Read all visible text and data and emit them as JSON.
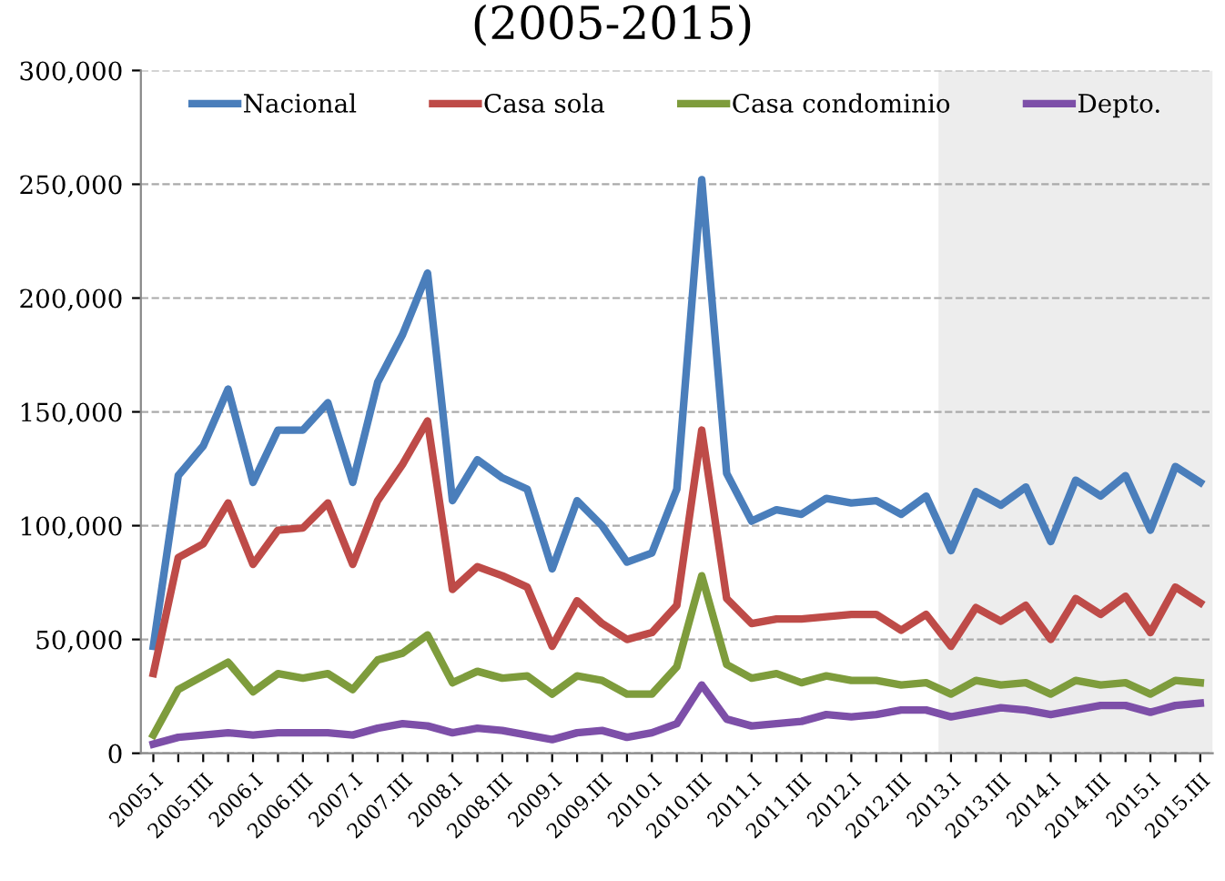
{
  "chart_data": {
    "type": "line",
    "title": "(2005-2015)",
    "categories": [
      "2005.I",
      null,
      "2005.III",
      null,
      "2006.I",
      null,
      "2006.III",
      null,
      "2007.I",
      null,
      "2007.III",
      null,
      "2008.I",
      null,
      "2008.III",
      null,
      "2009.I",
      null,
      "2009.III",
      null,
      "2010.I",
      null,
      "2010.III",
      null,
      "2011.I",
      null,
      "2011.III",
      null,
      "2012.I",
      null,
      "2012.III",
      null,
      "2013.I",
      null,
      "2013.III",
      null,
      "2014.I",
      null,
      "2014.III",
      null,
      "2015.I",
      null,
      "2015.III"
    ],
    "series": [
      {
        "name": "Nacional",
        "color": "#4a7ebb",
        "values": [
          47000,
          122000,
          135000,
          160000,
          119000,
          142000,
          142000,
          154000,
          119000,
          163000,
          184000,
          211000,
          111000,
          129000,
          121000,
          116000,
          81000,
          111000,
          100000,
          84000,
          88000,
          116000,
          252000,
          123000,
          102000,
          107000,
          105000,
          112000,
          110000,
          111000,
          105000,
          113000,
          89000,
          115000,
          109000,
          117000,
          93000,
          120000,
          113000,
          122000,
          98000,
          126000,
          119000
        ]
      },
      {
        "name": "Casa sola",
        "color": "#be4b48",
        "values": [
          35000,
          86000,
          92000,
          110000,
          83000,
          98000,
          99000,
          110000,
          83000,
          111000,
          127000,
          146000,
          72000,
          82000,
          78000,
          73000,
          47000,
          67000,
          57000,
          50000,
          53000,
          65000,
          142000,
          68000,
          57000,
          59000,
          59000,
          60000,
          61000,
          61000,
          54000,
          61000,
          47000,
          64000,
          58000,
          65000,
          50000,
          68000,
          61000,
          69000,
          53000,
          73000,
          66000
        ]
      },
      {
        "name": "Casa condominio",
        "color": "#7e9c3c",
        "values": [
          8000,
          28000,
          34000,
          40000,
          27000,
          35000,
          33000,
          35000,
          28000,
          41000,
          44000,
          52000,
          31000,
          36000,
          33000,
          34000,
          26000,
          34000,
          32000,
          26000,
          26000,
          38000,
          78000,
          39000,
          33000,
          35000,
          31000,
          34000,
          32000,
          32000,
          30000,
          31000,
          26000,
          32000,
          30000,
          31000,
          26000,
          32000,
          30000,
          31000,
          26000,
          32000,
          31000
        ]
      },
      {
        "name": "Depto.",
        "color": "#7d4fa8",
        "values": [
          4000,
          7000,
          8000,
          9000,
          8000,
          9000,
          9000,
          9000,
          8000,
          11000,
          13000,
          12000,
          9000,
          11000,
          10000,
          8000,
          6000,
          9000,
          10000,
          7000,
          9000,
          13000,
          30000,
          15000,
          12000,
          13000,
          14000,
          17000,
          16000,
          17000,
          19000,
          19000,
          16000,
          18000,
          20000,
          19000,
          17000,
          19000,
          21000,
          21000,
          18000,
          21000,
          22000
        ]
      }
    ],
    "ylim": [
      0,
      300000
    ],
    "yticks": [
      0,
      {
        "value": 50000,
        "label": "50,000"
      },
      {
        "value": 100000,
        "label": "100,000"
      },
      {
        "value": 150000,
        "label": "150,000"
      },
      {
        "value": 200000,
        "label": "200,000"
      },
      {
        "value": 250000,
        "label": "250,000"
      },
      {
        "value": 300000,
        "label": "300,000"
      }
    ],
    "bands": [
      {
        "axis": "x",
        "from": "2013.I",
        "to": "2015.III",
        "color": "#ededed"
      }
    ],
    "grid": "y",
    "legend": "top",
    "marker": "none",
    "line_style": "solid"
  }
}
